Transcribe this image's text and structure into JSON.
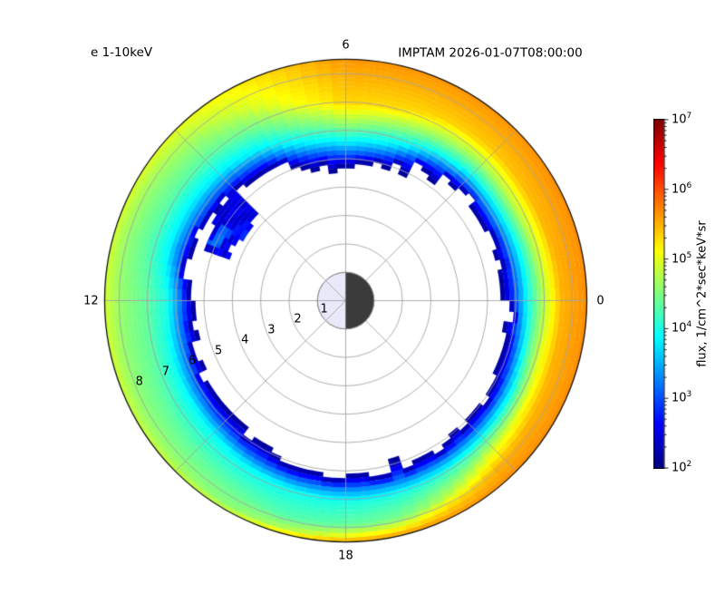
{
  "header": {
    "spectrum_label": "e 1-10keV",
    "timestamp_title": "IMPTAM 2026-01-07T08:00:00"
  },
  "chart_data": {
    "type": "heatmap",
    "projection": "polar",
    "title": "IMPTAM 2026-01-07T08:00:00",
    "series_label": "e 1-10keV",
    "angular_axis": {
      "unit": "MLT hours",
      "labels": [
        {
          "mlt": 0,
          "text": "0"
        },
        {
          "mlt": 6,
          "text": "6"
        },
        {
          "mlt": 12,
          "text": "12"
        },
        {
          "mlt": 18,
          "text": "18"
        }
      ],
      "spoke_step_deg": 45
    },
    "radial_axis": {
      "ticks": [
        1,
        2,
        3,
        4,
        5,
        6,
        7,
        8
      ],
      "max": 8.5,
      "tick_label_angle_deg": 201.5
    },
    "colorbar": {
      "label": "flux, 1/cm^2*sec*keV*sr",
      "scale": "log",
      "min_exp": 2,
      "max_exp": 7,
      "tick_exponents": [
        2,
        3,
        4,
        5,
        6,
        7
      ],
      "colormap": "jet"
    },
    "earth": {
      "radius": 1,
      "day_color": "#e9e9fa",
      "night_color": "#3b3b3b",
      "outline_color": "#888888",
      "day_direction_mlt": 12
    },
    "edge_roughness_re": 0.38,
    "flux_profiles_log10": [
      {
        "mlt": 0,
        "points": [
          [
            5.7,
            2.0
          ],
          [
            6.05,
            3.2
          ],
          [
            6.5,
            4.1
          ],
          [
            7.0,
            4.8
          ],
          [
            7.6,
            5.5
          ],
          [
            8.5,
            5.68
          ]
        ]
      },
      {
        "mlt": 1,
        "points": [
          [
            5.6,
            2.0
          ],
          [
            5.95,
            3.1
          ],
          [
            6.4,
            4.0
          ],
          [
            6.9,
            4.8
          ],
          [
            7.5,
            5.5
          ],
          [
            8.5,
            5.68
          ]
        ]
      },
      {
        "mlt": 2,
        "points": [
          [
            5.5,
            2.0
          ],
          [
            5.85,
            3.1
          ],
          [
            6.3,
            4.0
          ],
          [
            6.8,
            4.8
          ],
          [
            7.4,
            5.45
          ],
          [
            8.5,
            5.68
          ]
        ]
      },
      {
        "mlt": 3,
        "points": [
          [
            5.55,
            2.0
          ],
          [
            5.9,
            3.1
          ],
          [
            6.3,
            4.0
          ],
          [
            6.8,
            4.7
          ],
          [
            7.4,
            5.4
          ],
          [
            8.5,
            5.65
          ]
        ]
      },
      {
        "mlt": 4,
        "points": [
          [
            5.3,
            2.0
          ],
          [
            5.65,
            3.0
          ],
          [
            6.1,
            3.9
          ],
          [
            6.6,
            4.6
          ],
          [
            7.3,
            5.35
          ],
          [
            8.5,
            5.65
          ]
        ]
      },
      {
        "mlt": 5,
        "points": [
          [
            4.9,
            2.0
          ],
          [
            5.25,
            3.0
          ],
          [
            5.7,
            3.8
          ],
          [
            6.3,
            4.5
          ],
          [
            7.0,
            5.3
          ],
          [
            8.5,
            5.65
          ]
        ]
      },
      {
        "mlt": 6,
        "points": [
          [
            4.75,
            2.0
          ],
          [
            5.1,
            3.0
          ],
          [
            5.55,
            3.8
          ],
          [
            6.1,
            4.5
          ],
          [
            6.9,
            5.3
          ],
          [
            8.5,
            5.65
          ]
        ]
      },
      {
        "mlt": 7,
        "points": [
          [
            4.9,
            2.0
          ],
          [
            5.25,
            3.0
          ],
          [
            5.7,
            3.8
          ],
          [
            6.3,
            4.4
          ],
          [
            7.2,
            5.1
          ],
          [
            8.5,
            5.4
          ]
        ]
      },
      {
        "mlt": 8,
        "points": [
          [
            5.3,
            2.0
          ],
          [
            5.65,
            3.0
          ],
          [
            6.1,
            3.8
          ],
          [
            6.8,
            4.35
          ],
          [
            7.7,
            4.9
          ],
          [
            8.5,
            5.15
          ]
        ]
      },
      {
        "mlt": 9,
        "points": [
          [
            5.45,
            2.0
          ],
          [
            5.8,
            3.0
          ],
          [
            6.3,
            3.8
          ],
          [
            7.0,
            4.3
          ],
          [
            7.9,
            4.7
          ],
          [
            8.5,
            5.0
          ]
        ]
      },
      {
        "mlt": 10,
        "points": [
          [
            5.5,
            2.0
          ],
          [
            5.85,
            3.0
          ],
          [
            6.4,
            3.8
          ],
          [
            7.1,
            4.3
          ],
          [
            8.0,
            4.65
          ],
          [
            8.5,
            4.95
          ]
        ]
      },
      {
        "mlt": 11,
        "points": [
          [
            5.7,
            2.0
          ],
          [
            6.05,
            3.1
          ],
          [
            6.5,
            3.85
          ],
          [
            7.2,
            4.3
          ],
          [
            8.0,
            4.6
          ],
          [
            8.5,
            4.9
          ]
        ]
      },
      {
        "mlt": 12,
        "points": [
          [
            5.45,
            2.0
          ],
          [
            5.8,
            3.2
          ],
          [
            6.3,
            4.0
          ],
          [
            7.0,
            4.35
          ],
          [
            7.9,
            4.6
          ],
          [
            8.5,
            4.9
          ]
        ]
      },
      {
        "mlt": 13,
        "points": [
          [
            5.5,
            2.0
          ],
          [
            5.85,
            3.1
          ],
          [
            6.4,
            3.95
          ],
          [
            7.1,
            4.35
          ],
          [
            8.0,
            4.6
          ],
          [
            8.5,
            4.9
          ]
        ]
      },
      {
        "mlt": 14,
        "points": [
          [
            5.6,
            2.0
          ],
          [
            5.95,
            3.0
          ],
          [
            6.5,
            3.9
          ],
          [
            7.2,
            4.3
          ],
          [
            8.1,
            4.6
          ],
          [
            8.5,
            4.85
          ]
        ]
      },
      {
        "mlt": 15,
        "points": [
          [
            5.75,
            2.0
          ],
          [
            6.1,
            3.0
          ],
          [
            6.6,
            3.9
          ],
          [
            7.4,
            4.3
          ],
          [
            8.2,
            4.6
          ],
          [
            8.5,
            4.85
          ]
        ]
      },
      {
        "mlt": 16,
        "points": [
          [
            5.95,
            2.0
          ],
          [
            6.3,
            3.0
          ],
          [
            6.8,
            3.9
          ],
          [
            7.6,
            4.3
          ],
          [
            8.3,
            4.55
          ],
          [
            8.5,
            4.9
          ]
        ]
      },
      {
        "mlt": 17,
        "points": [
          [
            6.15,
            2.0
          ],
          [
            6.5,
            3.1
          ],
          [
            6.95,
            3.95
          ],
          [
            7.9,
            4.3
          ],
          [
            8.3,
            4.75
          ],
          [
            8.5,
            5.35
          ]
        ]
      },
      {
        "mlt": 18,
        "points": [
          [
            6.3,
            2.0
          ],
          [
            6.65,
            3.3
          ],
          [
            7.1,
            4.0
          ],
          [
            7.9,
            4.35
          ],
          [
            8.25,
            5.0
          ],
          [
            8.5,
            5.6
          ]
        ]
      },
      {
        "mlt": 19,
        "points": [
          [
            6.3,
            2.0
          ],
          [
            6.65,
            3.3
          ],
          [
            7.1,
            4.05
          ],
          [
            7.9,
            4.5
          ],
          [
            8.2,
            5.1
          ],
          [
            8.5,
            5.65
          ]
        ]
      },
      {
        "mlt": 20,
        "points": [
          [
            6.2,
            2.0
          ],
          [
            6.55,
            3.2
          ],
          [
            7.0,
            4.1
          ],
          [
            7.7,
            4.8
          ],
          [
            8.1,
            5.35
          ],
          [
            8.5,
            5.65
          ]
        ]
      },
      {
        "mlt": 21,
        "points": [
          [
            6.1,
            2.0
          ],
          [
            6.45,
            3.2
          ],
          [
            6.9,
            4.2
          ],
          [
            7.4,
            5.0
          ],
          [
            7.9,
            5.5
          ],
          [
            8.5,
            5.68
          ]
        ]
      },
      {
        "mlt": 22,
        "points": [
          [
            6.0,
            2.0
          ],
          [
            6.35,
            3.2
          ],
          [
            6.8,
            4.2
          ],
          [
            7.3,
            5.1
          ],
          [
            7.7,
            5.5
          ],
          [
            8.5,
            5.68
          ]
        ]
      },
      {
        "mlt": 23,
        "points": [
          [
            5.85,
            2.0
          ],
          [
            6.2,
            3.2
          ],
          [
            6.6,
            4.2
          ],
          [
            7.1,
            5.0
          ],
          [
            7.6,
            5.5
          ],
          [
            8.5,
            5.68
          ]
        ]
      }
    ],
    "low_flux_patches": [
      {
        "mlt_range": [
          9.0,
          10.7
        ],
        "r_range": [
          4.4,
          5.35
        ],
        "log10_flux": 2.5
      },
      {
        "mlt_range": [
          9.4,
          10.0
        ],
        "r_range": [
          4.15,
          4.65
        ],
        "log10_flux": 2.7
      },
      {
        "mlt_range": [
          9.9,
          10.5
        ],
        "r_range": [
          4.75,
          5.2
        ],
        "log10_flux": 3.1
      }
    ]
  },
  "style": {
    "grid_color": "rgba(160,160,160,0.85)",
    "axis_edge_color": "#111111",
    "background": "#ffffff",
    "text_color": "#000000"
  }
}
